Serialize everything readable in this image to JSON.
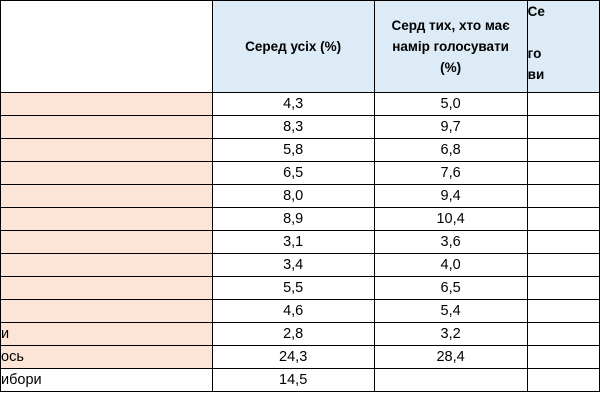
{
  "table": {
    "headers": {
      "label": "",
      "all": "Серед усіх (%)",
      "intend": [
        "Серд тих, хто має",
        "намір голосувати",
        "(%)"
      ],
      "third": [
        "Се",
        "го",
        "ви"
      ]
    },
    "rows": [
      {
        "label": "",
        "all": "4,3",
        "intend": "5,0"
      },
      {
        "label": "",
        "all": "8,3",
        "intend": "9,7"
      },
      {
        "label": "",
        "all": "5,8",
        "intend": "6,8"
      },
      {
        "label": "",
        "all": "6,5",
        "intend": "7,6"
      },
      {
        "label": "",
        "all": "8,0",
        "intend": "9,4"
      },
      {
        "label": "",
        "all": "8,9",
        "intend": "10,4"
      },
      {
        "label": "",
        "all": "3,1",
        "intend": "3,6"
      },
      {
        "label": "",
        "all": "3,4",
        "intend": "4,0"
      },
      {
        "label": "",
        "all": "5,5",
        "intend": "6,5"
      },
      {
        "label": "",
        "all": "4,6",
        "intend": "5,4"
      },
      {
        "label": "и",
        "all": "2,8",
        "intend": "3,2"
      },
      {
        "label": "ось",
        "all": "24,3",
        "intend": "28,4"
      },
      {
        "label": "ибори",
        "all": "14,5",
        "intend": ""
      }
    ]
  }
}
